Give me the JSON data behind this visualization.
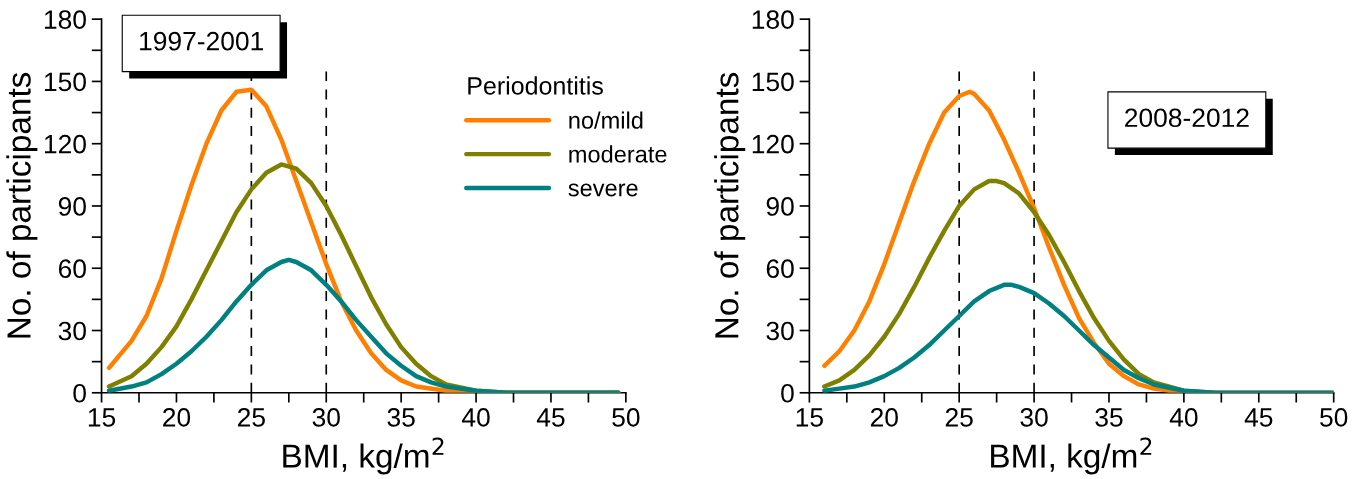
{
  "chart_data": [
    {
      "type": "line",
      "xlabel": "BMI, kg/m$^{2}$",
      "ylabel": "No. of participants",
      "legend_title": "Periodontitis",
      "legend": "right",
      "annotations": [
        "1997-2001"
      ],
      "grid": false,
      "marker": "none",
      "line_style": "solid",
      "xlim": [
        15,
        50
      ],
      "ylim": [
        0,
        180
      ],
      "xticks": [
        15,
        {
          "value": 17.5,
          "label": null
        },
        20,
        {
          "value": 22.5,
          "label": null
        },
        25,
        {
          "value": 27.5,
          "label": null
        },
        30,
        {
          "value": 32.5,
          "label": null
        },
        35,
        {
          "value": 37.5,
          "label": null
        },
        40,
        {
          "value": 42.5,
          "label": null
        },
        45,
        {
          "value": 47.5,
          "label": null
        },
        50
      ],
      "yticks": [
        0,
        {
          "value": 15,
          "label": null
        },
        30,
        {
          "value": 45,
          "label": null
        },
        60,
        {
          "value": 75,
          "label": null
        },
        90,
        {
          "value": 105,
          "label": null
        },
        120,
        {
          "value": 135,
          "label": null
        },
        150,
        {
          "value": 165,
          "label": null
        },
        180
      ],
      "ref_lines": [
        {
          "axis": "x",
          "value": 25,
          "color": "#000000",
          "line_style": "dashed"
        },
        {
          "axis": "x",
          "value": 30,
          "color": "#000000",
          "line_style": "dashed"
        }
      ],
      "series": [
        {
          "name": "no/mild",
          "color": "#ff8000",
          "x": [
            15.5,
            17,
            18,
            19,
            20,
            21,
            22,
            23,
            24,
            25,
            26,
            27,
            28,
            29,
            30,
            31,
            32,
            33,
            34,
            35,
            36,
            38,
            40,
            45,
            49.5
          ],
          "values": [
            12,
            25,
            37,
            55,
            78,
            100,
            120,
            136,
            145,
            146,
            138,
            122,
            102,
            82,
            62,
            44,
            30,
            19,
            11,
            6,
            3,
            1,
            0,
            0,
            0
          ]
        },
        {
          "name": "moderate",
          "color": "#808000",
          "x": [
            15.5,
            17,
            18,
            19,
            20,
            21,
            22,
            23,
            24,
            25,
            26,
            27,
            28,
            29,
            30,
            31,
            32,
            33,
            34,
            35,
            36,
            37,
            38,
            40,
            42,
            45,
            49.5
          ],
          "values": [
            3,
            8,
            14,
            22,
            32,
            45,
            59,
            73,
            87,
            98,
            106,
            110,
            108,
            101,
            90,
            76,
            61,
            46,
            33,
            22,
            14,
            8,
            4,
            1,
            0,
            0,
            0
          ]
        },
        {
          "name": "severe",
          "color": "#008080",
          "x": [
            15.5,
            17,
            18,
            19,
            20,
            21,
            22,
            23,
            24,
            25,
            26,
            27,
            27.5,
            28,
            29,
            30,
            31,
            32,
            33,
            34,
            35,
            36,
            37,
            38,
            40,
            42,
            45,
            49.5
          ],
          "values": [
            1,
            3,
            5,
            9,
            14,
            20,
            27,
            35,
            44,
            52,
            59,
            63,
            64,
            63,
            59,
            52,
            44,
            35,
            27,
            19,
            13,
            8,
            5,
            3,
            1,
            0,
            0,
            0
          ]
        }
      ]
    },
    {
      "type": "line",
      "xlabel": "BMI, kg/m$^{2}$",
      "ylabel": "No. of participants",
      "annotations": [
        "2008-2012"
      ],
      "grid": false,
      "marker": "none",
      "line_style": "solid",
      "xlim": [
        15,
        50
      ],
      "ylim": [
        0,
        180
      ],
      "xticks": [
        15,
        {
          "value": 17.5,
          "label": null
        },
        20,
        {
          "value": 22.5,
          "label": null
        },
        25,
        {
          "value": 27.5,
          "label": null
        },
        30,
        {
          "value": 32.5,
          "label": null
        },
        35,
        {
          "value": 37.5,
          "label": null
        },
        40,
        {
          "value": 42.5,
          "label": null
        },
        45,
        {
          "value": 47.5,
          "label": null
        },
        50
      ],
      "yticks": [
        0,
        {
          "value": 15,
          "label": null
        },
        30,
        {
          "value": 45,
          "label": null
        },
        60,
        {
          "value": 75,
          "label": null
        },
        90,
        {
          "value": 105,
          "label": null
        },
        120,
        {
          "value": 135,
          "label": null
        },
        150,
        {
          "value": 165,
          "label": null
        },
        180
      ],
      "ref_lines": [
        {
          "axis": "x",
          "value": 25,
          "color": "#000000",
          "line_style": "dashed"
        },
        {
          "axis": "x",
          "value": 30,
          "color": "#000000",
          "line_style": "dashed"
        }
      ],
      "series": [
        {
          "color": "#ff8000",
          "x": [
            16,
            17,
            18,
            19,
            20,
            21,
            22,
            23,
            24,
            25,
            25.7,
            26,
            27,
            28,
            29,
            30,
            31,
            32,
            33,
            34,
            35,
            36,
            37,
            38,
            40,
            45,
            50
          ],
          "values": [
            13,
            20,
            30,
            44,
            62,
            82,
            102,
            120,
            135,
            143,
            145,
            144,
            136,
            122,
            106,
            89,
            70,
            52,
            36,
            24,
            14,
            8,
            4,
            2,
            0,
            0,
            0
          ]
        },
        {
          "color": "#808000",
          "x": [
            16,
            17,
            18,
            19,
            20,
            21,
            22,
            23,
            24,
            25,
            26,
            27,
            27.5,
            28,
            29,
            30,
            31,
            32,
            33,
            34,
            35,
            36,
            37,
            38,
            40,
            42
          ],
          "values": [
            3,
            6,
            11,
            18,
            27,
            38,
            51,
            65,
            78,
            90,
            98,
            102,
            102,
            101,
            96,
            87,
            76,
            63,
            49,
            36,
            25,
            16,
            9,
            5,
            1,
            0
          ]
        },
        {
          "color": "#008080",
          "x": [
            16,
            17,
            18,
            19,
            20,
            21,
            22,
            23,
            24,
            25,
            26,
            27,
            28,
            28.5,
            29,
            30,
            31,
            32,
            33,
            34,
            35,
            36,
            37,
            38,
            40,
            42,
            45,
            50
          ],
          "values": [
            1,
            2,
            3,
            5,
            8,
            12,
            17,
            23,
            30,
            37,
            44,
            49,
            52,
            52,
            51,
            48,
            43,
            37,
            30,
            23,
            17,
            11,
            7,
            4,
            1,
            0,
            0,
            0
          ]
        }
      ]
    }
  ]
}
